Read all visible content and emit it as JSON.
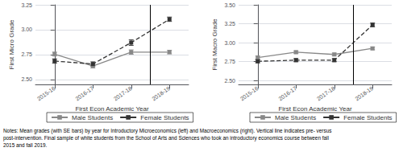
{
  "chart_data": [
    {
      "type": "line",
      "categories": [
        "2015-16",
        "2016-17",
        "2017-18",
        "2018-19"
      ],
      "xlabel": "First Econ Academic Year",
      "ylabel": "First Micro Grade",
      "ylim": [
        2.45,
        3.25
      ],
      "yticks": [
        {
          "value": 2.5,
          "label": "2.50"
        },
        2.75,
        {
          "value": 3.0,
          "label": "3.00"
        },
        3.25
      ],
      "grid": true,
      "legend": "bottom",
      "vline_after": "2017-18",
      "series": [
        {
          "name": "Male Students",
          "color": "#888888",
          "marker": "square",
          "line_style": "solid",
          "values": [
            2.755,
            2.635,
            2.775,
            2.775
          ],
          "errors": [
            0.02,
            0.02,
            0.022,
            0.018
          ]
        },
        {
          "name": "Female Students",
          "color": "#333333",
          "marker": "square",
          "line_style": "dashed",
          "values": [
            2.685,
            2.655,
            2.87,
            3.105
          ],
          "errors": [
            0.022,
            0.022,
            0.028,
            0.022
          ]
        }
      ]
    },
    {
      "type": "line",
      "categories": [
        "2015-16",
        "2016-17",
        "2017-18",
        "2018-19"
      ],
      "xlabel": "First Econ Academic Year",
      "ylabel": "First Macro Grade",
      "ylim": [
        2.45,
        3.5
      ],
      "yticks": [
        {
          "value": 2.5,
          "label": "2.50"
        },
        2.75,
        {
          "value": 3.0,
          "label": "3.00"
        },
        3.25,
        {
          "value": 3.5,
          "label": "3.50"
        }
      ],
      "grid": true,
      "legend": "bottom",
      "vline_after": "2017-18",
      "series": [
        {
          "name": "Male Students",
          "color": "#888888",
          "marker": "square",
          "line_style": "solid",
          "values": [
            2.805,
            2.875,
            2.845,
            2.925
          ],
          "errors": [
            0.02,
            0.018,
            0.018,
            0.018
          ]
        },
        {
          "name": "Female Students",
          "color": "#333333",
          "marker": "square",
          "line_style": "dashed",
          "values": [
            2.755,
            2.77,
            2.77,
            3.235
          ],
          "errors": [
            0.02,
            0.02,
            0.02,
            0.025
          ]
        }
      ]
    }
  ],
  "annotation": "Notes: Mean grades (with SE bars) by year for Introductory Microeconomics (left) and Macroeconomics (right). Vertical line indicates pre- versus\npost-intervention. Final sample of white students from the School of Arts and Sciences who took an introductory economics course between fall\n2015 and fall 2019."
}
